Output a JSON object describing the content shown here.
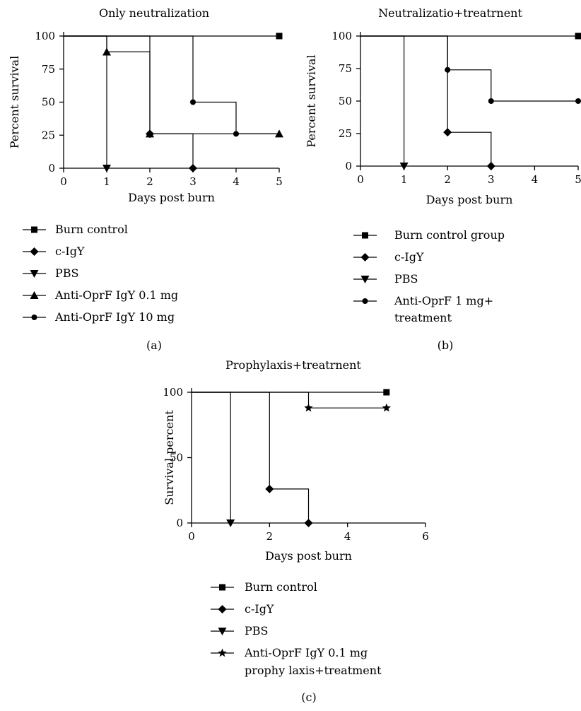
{
  "chart_data": [
    {
      "type": "line",
      "step": true,
      "panel_label": "(a)",
      "title": "Only neutralization",
      "xlabel": "Days post burn",
      "ylabel": "Percent survival",
      "xlim": [
        0,
        5
      ],
      "ylim": [
        0,
        100
      ],
      "xticks": [
        "0",
        "1",
        "2",
        "3",
        "4",
        "5"
      ],
      "yticks": [
        "0",
        "25",
        "50",
        "75",
        "100"
      ],
      "xtick_values": [
        0,
        1,
        2,
        3,
        4,
        5
      ],
      "ytick_values": [
        0,
        25,
        50,
        75,
        100
      ],
      "legend_position": "bottom",
      "series": [
        {
          "name": "Burn control",
          "marker": "square",
          "points": [
            [
              0,
              100
            ],
            [
              5,
              100
            ]
          ],
          "marked": [
            [
              5,
              100
            ]
          ]
        },
        {
          "name": "c-IgY",
          "marker": "diamond",
          "points": [
            [
              0,
              100
            ],
            [
              2,
              100
            ],
            [
              2,
              26
            ],
            [
              3,
              26
            ],
            [
              3,
              0
            ]
          ],
          "marked": [
            [
              2,
              26
            ],
            [
              3,
              0
            ]
          ]
        },
        {
          "name": "PBS",
          "marker": "triangle-down",
          "points": [
            [
              0,
              100
            ],
            [
              1,
              100
            ],
            [
              1,
              0
            ]
          ],
          "marked": [
            [
              1,
              0
            ]
          ]
        },
        {
          "name": "Anti-OprF IgY 0.1 mg",
          "marker": "triangle-up",
          "points": [
            [
              0,
              100
            ],
            [
              1,
              100
            ],
            [
              1,
              88
            ],
            [
              2,
              88
            ],
            [
              2,
              26
            ],
            [
              5,
              26
            ]
          ],
          "marked": [
            [
              1,
              88
            ],
            [
              2,
              26
            ],
            [
              5,
              26
            ]
          ]
        },
        {
          "name": "Anti-OprF IgY 10 mg",
          "marker": "circle",
          "points": [
            [
              0,
              100
            ],
            [
              3,
              100
            ],
            [
              3,
              50
            ],
            [
              4,
              50
            ],
            [
              4,
              26
            ],
            [
              5,
              26
            ]
          ],
          "marked": [
            [
              3,
              50
            ],
            [
              4,
              26
            ]
          ]
        }
      ]
    },
    {
      "type": "line",
      "step": true,
      "panel_label": "(b)",
      "title": "Neutralizatio+treatrnent",
      "xlabel": "Days post burn",
      "ylabel": "Percent survival",
      "xlim": [
        0,
        5
      ],
      "ylim": [
        0,
        100
      ],
      "xticks": [
        "0",
        "1",
        "2",
        "3",
        "4",
        "5"
      ],
      "yticks": [
        "0",
        "25",
        "50",
        "75",
        "100"
      ],
      "xtick_values": [
        0,
        1,
        2,
        3,
        4,
        5
      ],
      "ytick_values": [
        0,
        25,
        50,
        75,
        100
      ],
      "legend_position": "bottom",
      "series": [
        {
          "name": "Burn control group",
          "marker": "square",
          "points": [
            [
              0,
              100
            ],
            [
              5,
              100
            ]
          ],
          "marked": [
            [
              5,
              100
            ]
          ]
        },
        {
          "name": "c-IgY",
          "marker": "diamond",
          "points": [
            [
              0,
              100
            ],
            [
              2,
              100
            ],
            [
              2,
              26
            ],
            [
              3,
              26
            ],
            [
              3,
              0
            ]
          ],
          "marked": [
            [
              2,
              26
            ],
            [
              3,
              0
            ]
          ]
        },
        {
          "name": "PBS",
          "marker": "triangle-down",
          "points": [
            [
              0,
              100
            ],
            [
              1,
              100
            ],
            [
              1,
              0
            ]
          ],
          "marked": [
            [
              1,
              0
            ]
          ]
        },
        {
          "name": "Anti-OprF 1 mg+",
          "name_line2": "treatment",
          "marker": "circle",
          "points": [
            [
              0,
              100
            ],
            [
              2,
              100
            ],
            [
              2,
              74
            ],
            [
              3,
              74
            ],
            [
              3,
              50
            ],
            [
              5,
              50
            ]
          ],
          "marked": [
            [
              2,
              74
            ],
            [
              3,
              50
            ],
            [
              5,
              50
            ]
          ]
        }
      ]
    },
    {
      "type": "line",
      "step": true,
      "panel_label": "(c)",
      "title": "Prophylaxis+treatrnent",
      "xlabel": "Days post burn",
      "ylabel": "Survival percent",
      "xlim": [
        0,
        6
      ],
      "ylim": [
        0,
        100
      ],
      "xticks": [
        "0",
        "2",
        "4",
        "6"
      ],
      "yticks": [
        "0",
        "50",
        "100"
      ],
      "xtick_values": [
        0,
        2,
        4,
        6
      ],
      "ytick_values": [
        0,
        50,
        100
      ],
      "legend_position": "bottom",
      "series": [
        {
          "name": "Burn control",
          "marker": "square",
          "points": [
            [
              0,
              100
            ],
            [
              5,
              100
            ]
          ],
          "marked": [
            [
              5,
              100
            ]
          ]
        },
        {
          "name": "c-IgY",
          "marker": "diamond",
          "points": [
            [
              0,
              100
            ],
            [
              2,
              100
            ],
            [
              2,
              26
            ],
            [
              3,
              26
            ],
            [
              3,
              0
            ]
          ],
          "marked": [
            [
              2,
              26
            ],
            [
              3,
              0
            ]
          ]
        },
        {
          "name": "PBS",
          "marker": "triangle-down",
          "points": [
            [
              0,
              100
            ],
            [
              1,
              100
            ],
            [
              1,
              0
            ]
          ],
          "marked": [
            [
              1,
              0
            ]
          ]
        },
        {
          "name": "Anti-OprF IgY 0.1 mg",
          "name_line2": "prophy laxis+treatment",
          "marker": "star",
          "points": [
            [
              0,
              100
            ],
            [
              3,
              100
            ],
            [
              3,
              88
            ],
            [
              5,
              88
            ]
          ],
          "marked": [
            [
              3,
              88
            ],
            [
              5,
              88
            ]
          ]
        }
      ]
    }
  ]
}
